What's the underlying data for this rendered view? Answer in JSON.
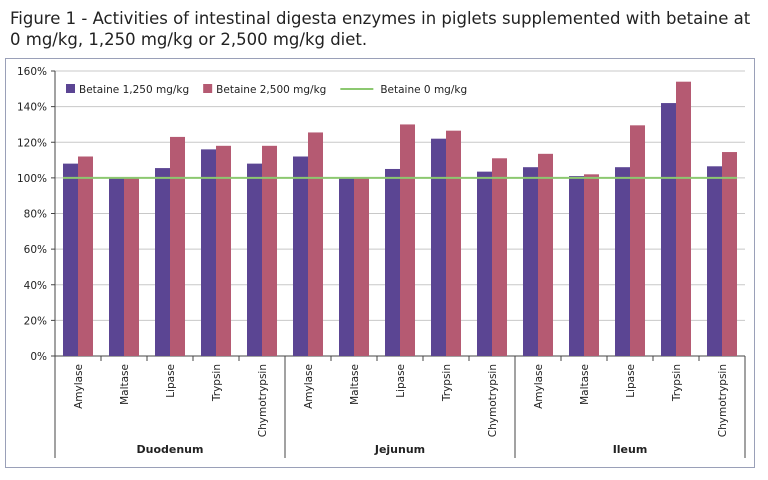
{
  "chart_data": {
    "type": "bar",
    "title": "Figure 1 - Activities of intestinal digesta enzymes in piglets supplemented with betaine at 0 mg/kg, 1,250 mg/kg or 2,500 mg/kg diet.",
    "xlabel": "",
    "ylabel": "",
    "ylim": [
      0,
      160
    ],
    "yticks": [
      "0%",
      "20%",
      "40%",
      "60%",
      "80%",
      "100%",
      "120%",
      "140%",
      "160%"
    ],
    "grid": true,
    "legend_position": "top-left",
    "groups": [
      "Duodenum",
      "Jejunum",
      "Ileum"
    ],
    "categories": [
      "Amylase",
      "Maltase",
      "Lipase",
      "Trypsin",
      "Chymotrypsin",
      "Amylase",
      "Maltase",
      "Lipase",
      "Trypsin",
      "Chymotrypsin",
      "Amylase",
      "Maltase",
      "Lipase",
      "Trypsin",
      "Chymotrypsin"
    ],
    "series": [
      {
        "name": "Betaine 1,250 mg/kg",
        "color": "#5b4593",
        "values": [
          108,
          100,
          105.5,
          116,
          108,
          112,
          100,
          105,
          122,
          103.5,
          106,
          101,
          106,
          142,
          106.5
        ]
      },
      {
        "name": "Betaine 2,500 mg/kg",
        "color": "#b55a72",
        "values": [
          112,
          100,
          123,
          118,
          118,
          125.5,
          100,
          130,
          126.5,
          111,
          113.5,
          102,
          129.5,
          154,
          114.5
        ]
      },
      {
        "name": "Betaine 0 mg/kg",
        "color": "#8cc870",
        "type": "line",
        "value": 100
      }
    ]
  }
}
